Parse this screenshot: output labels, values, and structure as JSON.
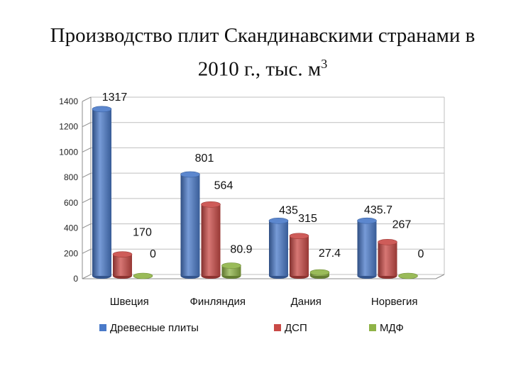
{
  "chart_data": {
    "type": "bar",
    "title_main": "Производство плит Скандинавскими странами в 2010 г., тыс. м",
    "title_sup": "3",
    "categories": [
      "Швеция",
      "Финляндия",
      "Дания",
      "Норвегия"
    ],
    "series": [
      {
        "name": "Древесные плиты",
        "color": "#4a7ac9",
        "values": [
          1317,
          801,
          435,
          435.7
        ]
      },
      {
        "name": "ДСП",
        "color": "#c94a46",
        "values": [
          170,
          564,
          315,
          267
        ]
      },
      {
        "name": "МДФ",
        "color": "#8fb347",
        "values": [
          0,
          80.9,
          27.4,
          0
        ]
      }
    ],
    "data_labels": [
      [
        "1317",
        "801",
        "435",
        "435.7"
      ],
      [
        "170",
        "564",
        "315",
        "267"
      ],
      [
        "0",
        "80.9",
        "27.4",
        "0"
      ]
    ],
    "y_ticks": [
      "0",
      "200",
      "400",
      "600",
      "800",
      "1000",
      "1200",
      "1400"
    ],
    "ylim": [
      0,
      1400
    ],
    "legend_position": "bottom",
    "grid": true
  }
}
